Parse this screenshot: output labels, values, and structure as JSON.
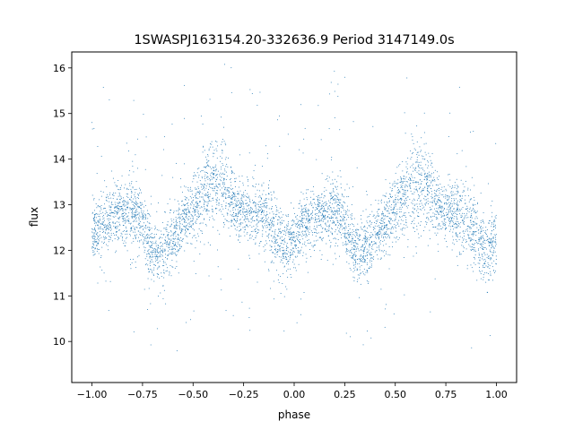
{
  "chart_data": {
    "type": "scatter",
    "title": "1SWASPJ163154.20-332636.9 Period 3147149.0s",
    "xlabel": "phase",
    "ylabel": "flux",
    "xlim": [
      -1.1,
      1.1
    ],
    "ylim": [
      9.1,
      16.35
    ],
    "xticks": [
      -1.0,
      -0.75,
      -0.5,
      -0.25,
      0.0,
      0.25,
      0.5,
      0.75,
      1.0
    ],
    "xtick_labels": [
      "−1.00",
      "−0.75",
      "−0.50",
      "−0.25",
      "0.00",
      "0.25",
      "0.50",
      "0.75",
      "1.00"
    ],
    "yticks": [
      10,
      11,
      12,
      13,
      14,
      15,
      16
    ],
    "ytick_labels": [
      "10",
      "11",
      "12",
      "13",
      "14",
      "15",
      "16"
    ],
    "grid": false,
    "marker_color": "#1f77b4",
    "series": [
      {
        "phase_range": [
          -1.0,
          1.0
        ],
        "periodic_in_phase": 1.0,
        "profile_phase": [
          0.0,
          0.05,
          0.1,
          0.15,
          0.2,
          0.25,
          0.3,
          0.35,
          0.4,
          0.45,
          0.5,
          0.55,
          0.6,
          0.65,
          0.7,
          0.75,
          0.8,
          0.85,
          0.9,
          0.95,
          1.0
        ],
        "profile_flux_median": [
          12.3,
          12.6,
          12.7,
          12.8,
          12.9,
          12.6,
          12.0,
          12.0,
          12.3,
          12.6,
          12.9,
          13.2,
          13.4,
          13.5,
          13.0,
          12.9,
          12.8,
          12.7,
          12.4,
          12.0,
          12.3
        ],
        "profile_flux_spread": [
          0.6,
          0.6,
          0.55,
          0.6,
          0.8,
          0.7,
          0.6,
          0.7,
          0.6,
          0.6,
          0.7,
          0.8,
          0.9,
          0.9,
          0.6,
          0.6,
          0.7,
          0.8,
          0.8,
          0.7,
          0.6
        ],
        "flux_min": 9.5,
        "flux_max": 16.1
      }
    ]
  }
}
